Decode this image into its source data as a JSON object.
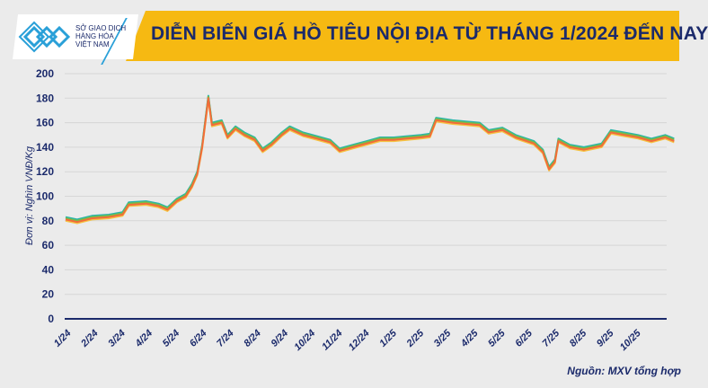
{
  "header": {
    "title": "DIỄN BIẾN GIÁ HỒ TIÊU NỘI ĐỊA TỪ THÁNG 1/2024 ĐẾN NAY",
    "logo": {
      "lines": [
        "SỞ GIAO DỊCH",
        "HÀNG HÓA",
        "VIỆT NAM"
      ]
    }
  },
  "source": "Nguồn: MXV tổng hợp",
  "colors": {
    "banner": "#f6b912",
    "title": "#1b2a6b",
    "series": [
      "#2bb5a8",
      "#7dbb42",
      "#f5c342",
      "#f26b3a"
    ]
  },
  "chart_data": {
    "type": "line",
    "title": "DIỄN BIẾN GIÁ HỒ TIÊU NỘI ĐỊA TỪ THÁNG 1/2024 ĐẾN NAY",
    "ylabel": "Đơn vị: Nghìn VNĐ/Kg",
    "xlabel": "",
    "ylim": [
      0,
      200
    ],
    "yticks": [
      0,
      20,
      40,
      60,
      80,
      100,
      120,
      140,
      160,
      180,
      200
    ],
    "xtick_labels": [
      "1/24",
      "2/24",
      "3/24",
      "4/24",
      "5/24",
      "6/24",
      "7/24",
      "8/24",
      "9/24",
      "10/24",
      "11/24",
      "12/24",
      "1/25",
      "2/25",
      "3/25",
      "4/25",
      "5/25",
      "6/25",
      "7/25",
      "8/25",
      "9/25",
      "10/25"
    ],
    "grid": true,
    "legend": "none",
    "x": [
      "2024-01-02",
      "2024-01-15",
      "2024-02-01",
      "2024-02-20",
      "2024-03-05",
      "2024-03-12",
      "2024-04-01",
      "2024-04-15",
      "2024-04-25",
      "2024-05-05",
      "2024-05-15",
      "2024-05-22",
      "2024-05-28",
      "2024-06-03",
      "2024-06-10",
      "2024-06-14",
      "2024-06-25",
      "2024-07-01",
      "2024-07-10",
      "2024-07-20",
      "2024-08-01",
      "2024-08-10",
      "2024-08-20",
      "2024-09-01",
      "2024-09-10",
      "2024-09-25",
      "2024-10-10",
      "2024-10-25",
      "2024-11-05",
      "2024-11-20",
      "2024-12-05",
      "2024-12-20",
      "2025-01-05",
      "2025-01-20",
      "2025-02-05",
      "2025-02-15",
      "2025-02-22",
      "2025-03-10",
      "2025-03-25",
      "2025-04-10",
      "2025-04-20",
      "2025-05-05",
      "2025-05-20",
      "2025-06-10",
      "2025-06-20",
      "2025-06-27",
      "2025-07-03",
      "2025-07-07",
      "2025-07-20",
      "2025-08-05",
      "2025-08-25",
      "2025-09-05",
      "2025-09-20",
      "2025-10-05",
      "2025-10-20",
      "2025-11-05",
      "2025-11-15"
    ],
    "series": [
      {
        "color": "#2bb5a8",
        "values": [
          83,
          81,
          84,
          85,
          87,
          95,
          96,
          94,
          91,
          98,
          102,
          110,
          120,
          142,
          182,
          160,
          162,
          150,
          157,
          152,
          148,
          139,
          144,
          152,
          157,
          152,
          149,
          146,
          139,
          142,
          145,
          148,
          148,
          149,
          150,
          151,
          164,
          162,
          161,
          160,
          154,
          156,
          150,
          145,
          138,
          124,
          130,
          147,
          142,
          140,
          143,
          154,
          152,
          150,
          147,
          150,
          147
        ]
      },
      {
        "color": "#7dbb42",
        "values": [
          82,
          80,
          83,
          84,
          86,
          94,
          95,
          93,
          90,
          97,
          101,
          109,
          119,
          141,
          181,
          159,
          161,
          149,
          156,
          151,
          147,
          138,
          143,
          151,
          156,
          151,
          148,
          145,
          138,
          141,
          144,
          147,
          147,
          148,
          149,
          150,
          163,
          161,
          160,
          159,
          153,
          155,
          149,
          144,
          137,
          123,
          129,
          146,
          141,
          139,
          142,
          153,
          151,
          149,
          146,
          149,
          146
        ]
      },
      {
        "color": "#f5c342",
        "values": [
          80,
          78,
          81,
          82,
          84,
          92,
          93,
          91,
          88,
          95,
          99,
          107,
          117,
          139,
          179,
          157,
          159,
          147,
          154,
          149,
          145,
          136,
          141,
          149,
          154,
          149,
          146,
          143,
          136,
          139,
          142,
          145,
          145,
          146,
          147,
          148,
          161,
          159,
          158,
          157,
          151,
          153,
          147,
          142,
          135,
          121,
          127,
          144,
          139,
          137,
          140,
          151,
          149,
          147,
          144,
          147,
          144
        ]
      },
      {
        "color": "#f26b3a",
        "values": [
          81,
          79,
          82,
          83,
          85,
          93,
          94,
          92,
          89,
          96,
          100,
          108,
          118,
          140,
          180,
          158,
          160,
          148,
          155,
          150,
          146,
          137,
          142,
          150,
          155,
          150,
          147,
          144,
          137,
          140,
          143,
          146,
          146,
          147,
          148,
          149,
          162,
          160,
          159,
          158,
          152,
          154,
          148,
          143,
          136,
          122,
          128,
          145,
          140,
          138,
          141,
          152,
          150,
          148,
          145,
          148,
          145
        ]
      }
    ]
  }
}
